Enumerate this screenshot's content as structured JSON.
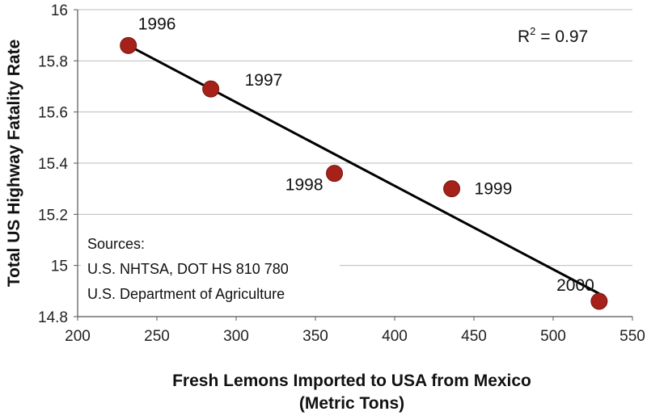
{
  "chart_data": {
    "type": "scatter",
    "title": "",
    "xlabel_lines": [
      "Fresh Lemons Imported to USA from Mexico",
      "(Metric Tons)"
    ],
    "ylabel": "Total US Highway Fatality Rate",
    "xlim": [
      200,
      550
    ],
    "ylim": [
      14.8,
      16
    ],
    "xticks": [
      200,
      250,
      300,
      350,
      400,
      450,
      500,
      550
    ],
    "yticks": [
      14.8,
      15,
      15.2,
      15.4,
      15.6,
      15.8,
      16
    ],
    "ytick_labels": [
      "14.8",
      "15",
      "15.2",
      "15.4",
      "15.6",
      "15.8",
      "16"
    ],
    "grid": "horizontal",
    "points": [
      {
        "label": "1996",
        "x": 232,
        "y": 15.86
      },
      {
        "label": "1997",
        "x": 284,
        "y": 15.69
      },
      {
        "label": "1998",
        "x": 362,
        "y": 15.36
      },
      {
        "label": "1999",
        "x": 436,
        "y": 15.3
      },
      {
        "label": "2000",
        "x": 529,
        "y": 14.86
      }
    ],
    "trendline": {
      "x": [
        232,
        529
      ],
      "y": [
        15.86,
        14.89
      ]
    },
    "r2_text": {
      "prefix": "R",
      "sup": "2",
      "suffix": " = 0.97"
    },
    "sources": [
      "Sources:",
      "U.S. NHTSA, DOT HS 810 780",
      "U.S. Department of Agriculture"
    ],
    "colors": {
      "marker": "#a52119",
      "marker_edge": "#7a140e",
      "line": "#000000",
      "grid": "#bcbcbc"
    }
  }
}
